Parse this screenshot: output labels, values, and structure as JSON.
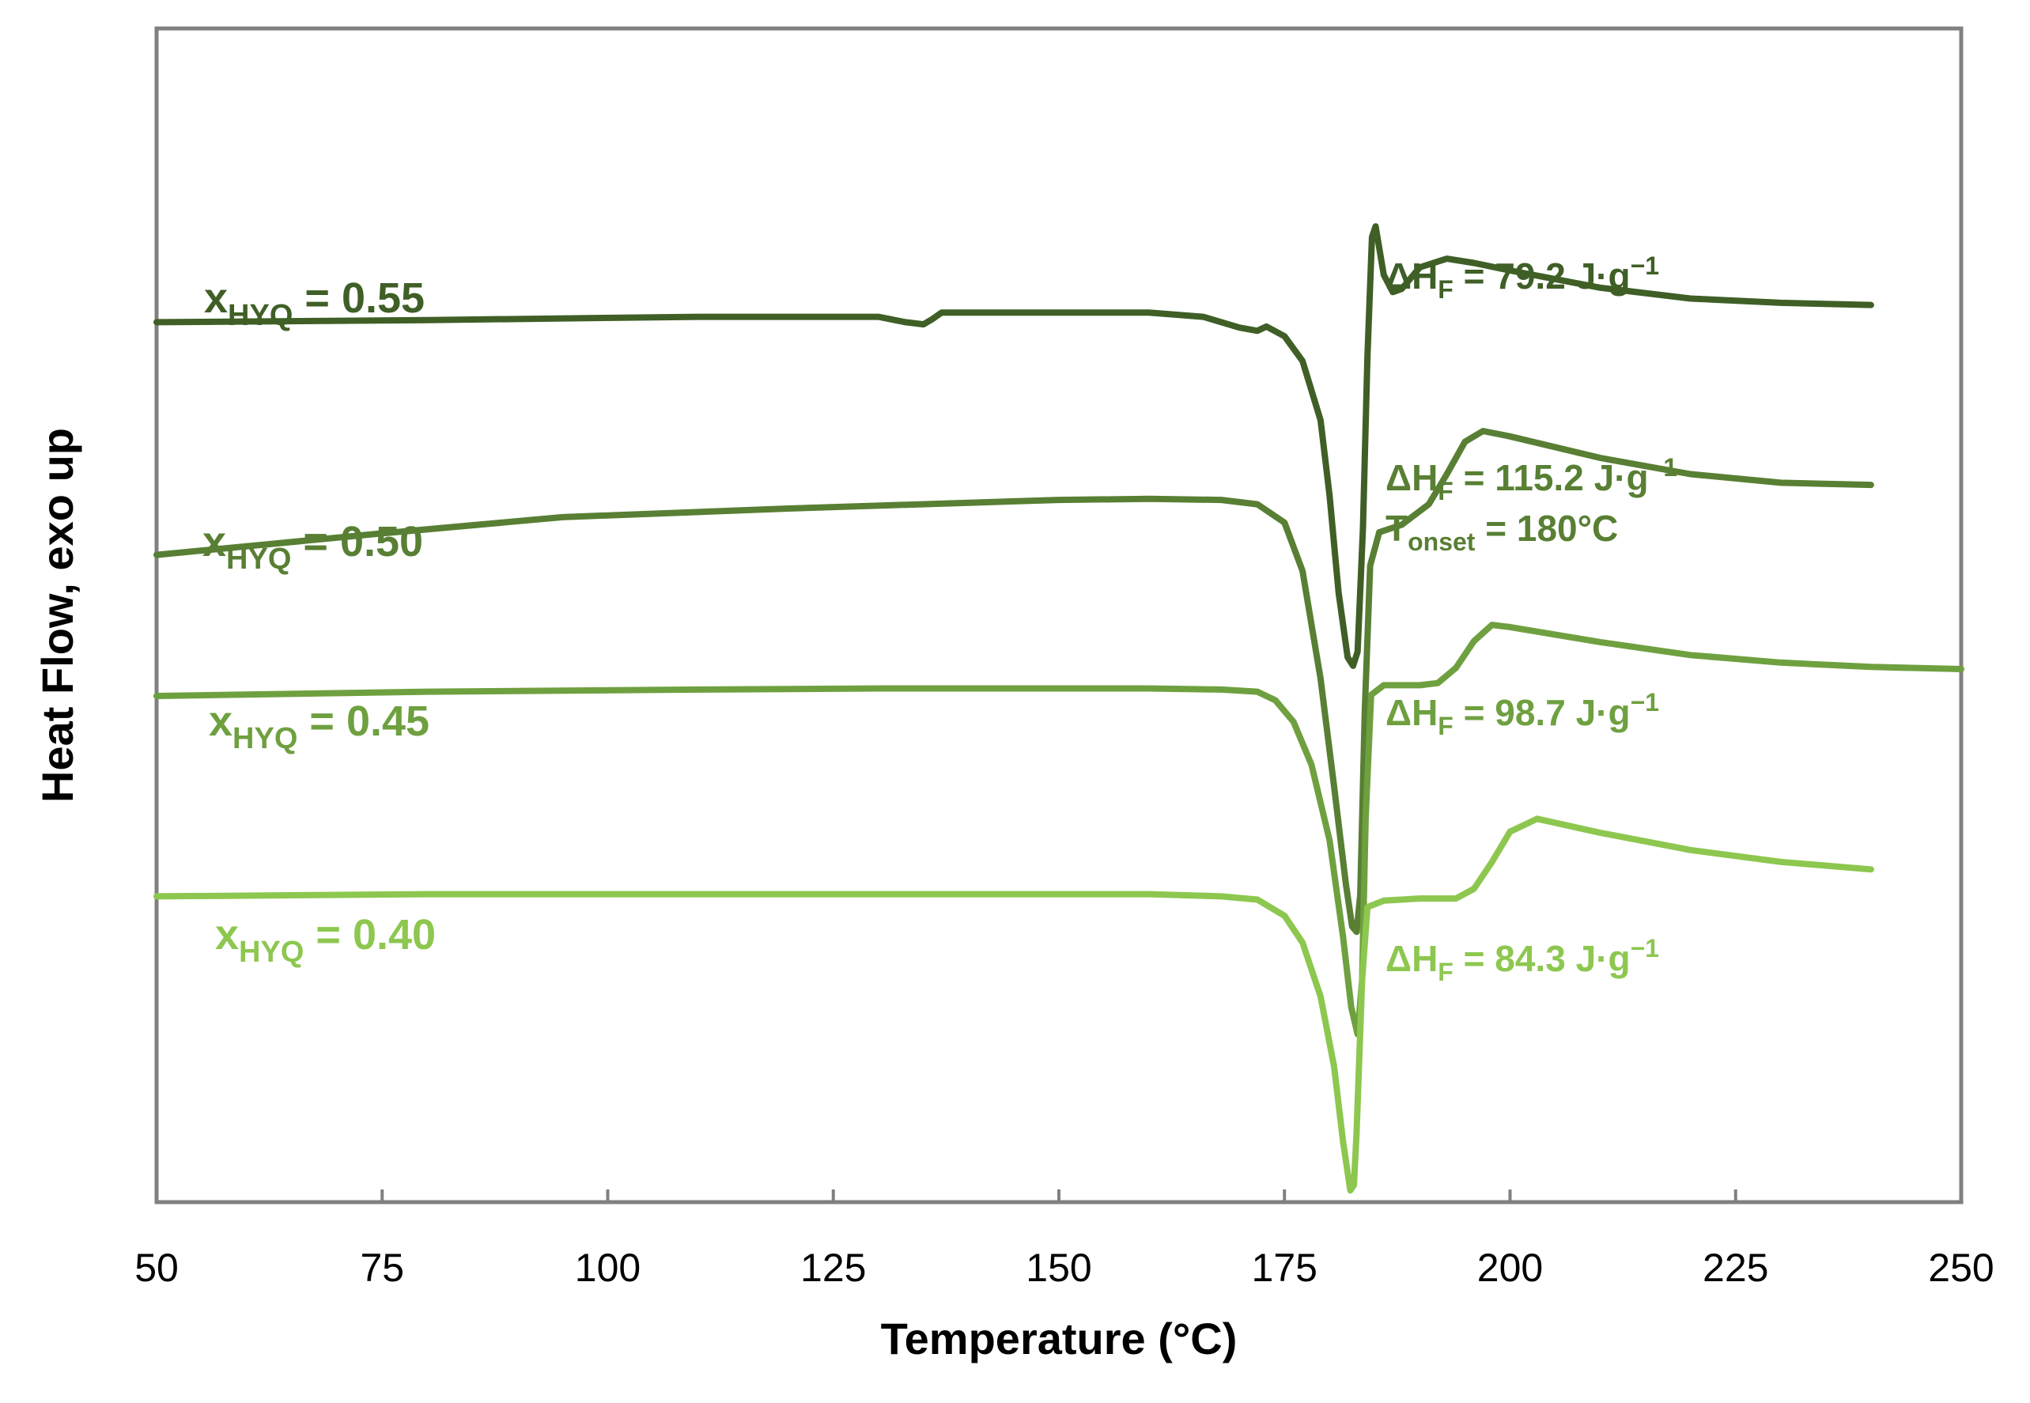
{
  "chart_data": {
    "type": "line",
    "title": "",
    "xlabel": "Temperature (°C)",
    "ylabel": "Heat Flow, exo up",
    "xlim": [
      50,
      250
    ],
    "ylim": [
      0,
      100
    ],
    "x_ticks": [
      "50",
      "75",
      "100",
      "125",
      "150",
      "175",
      "200",
      "225",
      "250"
    ],
    "y_ticks_shown": false,
    "grid": false,
    "series": [
      {
        "name": "x_HYQ = 0.55",
        "label_main": "x",
        "label_sub": "HYQ",
        "label_value": " = 0.55",
        "color": "#3f5f26",
        "points": [
          [
            50,
            81.1
          ],
          [
            80,
            81.3
          ],
          [
            110,
            81.6
          ],
          [
            130,
            81.6
          ],
          [
            133,
            81.1
          ],
          [
            135,
            80.9
          ],
          [
            136,
            81.4
          ],
          [
            137,
            82.0
          ],
          [
            160,
            82.0
          ],
          [
            166,
            81.6
          ],
          [
            170,
            80.6
          ],
          [
            172,
            80.3
          ],
          [
            173,
            80.7
          ],
          [
            175,
            79.8
          ],
          [
            177,
            77.5
          ],
          [
            179,
            72.0
          ],
          [
            180,
            65.0
          ],
          [
            181,
            56.0
          ],
          [
            182,
            50.0
          ],
          [
            182.6,
            49.2
          ],
          [
            183.1,
            50.5
          ],
          [
            183.7,
            62.0
          ],
          [
            184.2,
            78.0
          ],
          [
            184.7,
            89.0
          ],
          [
            185.1,
            90.0
          ],
          [
            186,
            85.5
          ],
          [
            187,
            83.9
          ],
          [
            188,
            84.2
          ],
          [
            190,
            86.2
          ],
          [
            193,
            87.0
          ],
          [
            196,
            86.6
          ],
          [
            200,
            85.9
          ],
          [
            210,
            84.3
          ],
          [
            220,
            83.3
          ],
          [
            230,
            82.9
          ],
          [
            240,
            82.7
          ]
        ]
      },
      {
        "name": "x_HYQ = 0.50",
        "label_main": "x",
        "label_sub": "HYQ",
        "label_value": " = 0.50",
        "color": "#587f33",
        "points": [
          [
            50,
            59.5
          ],
          [
            75,
            61.5
          ],
          [
            95,
            63.0
          ],
          [
            120,
            63.8
          ],
          [
            150,
            64.6
          ],
          [
            160,
            64.7
          ],
          [
            168,
            64.6
          ],
          [
            172,
            64.2
          ],
          [
            175,
            62.5
          ],
          [
            177,
            58.0
          ],
          [
            179,
            48.0
          ],
          [
            180.5,
            38.0
          ],
          [
            181.8,
            29.0
          ],
          [
            182.5,
            25.0
          ],
          [
            183.0,
            24.5
          ],
          [
            183.4,
            28.0
          ],
          [
            183.9,
            45.0
          ],
          [
            184.5,
            58.5
          ],
          [
            185.5,
            61.6
          ],
          [
            188,
            62.3
          ],
          [
            191,
            64.2
          ],
          [
            193,
            67.0
          ],
          [
            195,
            70.0
          ],
          [
            197,
            71.0
          ],
          [
            200,
            70.5
          ],
          [
            210,
            68.5
          ],
          [
            220,
            67.0
          ],
          [
            230,
            66.2
          ],
          [
            240,
            66.0
          ]
        ]
      },
      {
        "name": "x_HYQ = 0.45",
        "label_main": "x",
        "label_sub": "HYQ",
        "label_value": " = 0.45",
        "color": "#6fa040",
        "points": [
          [
            50,
            46.4
          ],
          [
            80,
            46.8
          ],
          [
            110,
            47.0
          ],
          [
            130,
            47.1
          ],
          [
            160,
            47.1
          ],
          [
            168,
            47.0
          ],
          [
            172,
            46.8
          ],
          [
            174,
            46.0
          ],
          [
            176,
            44.0
          ],
          [
            178,
            40.0
          ],
          [
            180,
            33.0
          ],
          [
            181.5,
            24.0
          ],
          [
            182.4,
            17.5
          ],
          [
            183.1,
            15.0
          ],
          [
            183.6,
            20.0
          ],
          [
            184.0,
            35.0
          ],
          [
            184.6,
            46.5
          ],
          [
            186,
            47.4
          ],
          [
            190,
            47.4
          ],
          [
            192,
            47.6
          ],
          [
            194,
            49.0
          ],
          [
            196,
            51.5
          ],
          [
            198,
            53.0
          ],
          [
            200,
            52.8
          ],
          [
            210,
            51.4
          ],
          [
            220,
            50.2
          ],
          [
            230,
            49.5
          ],
          [
            240,
            49.1
          ],
          [
            250,
            48.9
          ]
        ]
      },
      {
        "name": "x_HYQ = 0.40",
        "label_main": "x",
        "label_sub": "HYQ",
        "label_value": " = 0.40",
        "color": "#8dc74f",
        "points": [
          [
            50,
            27.8
          ],
          [
            80,
            28.0
          ],
          [
            110,
            28.0
          ],
          [
            140,
            28.0
          ],
          [
            160,
            28.0
          ],
          [
            168,
            27.8
          ],
          [
            172,
            27.5
          ],
          [
            175,
            26.0
          ],
          [
            177,
            23.5
          ],
          [
            179,
            18.5
          ],
          [
            180.5,
            12.0
          ],
          [
            181.5,
            5.0
          ],
          [
            182.3,
            0.5
          ],
          [
            182.7,
            1.0
          ],
          [
            183.0,
            6.0
          ],
          [
            183.6,
            20.0
          ],
          [
            184.2,
            26.8
          ],
          [
            186,
            27.4
          ],
          [
            190,
            27.6
          ],
          [
            194,
            27.6
          ],
          [
            196,
            28.5
          ],
          [
            198,
            31.0
          ],
          [
            200,
            33.8
          ],
          [
            203,
            35.0
          ],
          [
            210,
            33.7
          ],
          [
            220,
            32.1
          ],
          [
            230,
            31.0
          ],
          [
            240,
            30.3
          ]
        ]
      }
    ],
    "annotations": [
      {
        "series": "x_HYQ = 0.55",
        "dH_pre": "ΔH",
        "dH_sub": "F",
        "dH_value": " = 79.2 J·g",
        "dH_sup": "−1"
      },
      {
        "series": "x_HYQ = 0.50",
        "dH_pre": "ΔH",
        "dH_sub": "F",
        "dH_value": " = 115.2 J·g",
        "dH_sup": "−1",
        "t_pre": "T",
        "t_sub": "onset",
        "t_value": " = 180°C"
      },
      {
        "series": "x_HYQ = 0.45",
        "dH_pre": "ΔH",
        "dH_sub": "F",
        "dH_value": " = 98.7 J·g",
        "dH_sup": "−1"
      },
      {
        "series": "x_HYQ = 0.40",
        "dH_pre": "ΔH",
        "dH_sub": "F",
        "dH_value": " = 84.3 J·g",
        "dH_sup": "−1"
      }
    ],
    "axis_color": "#808080"
  }
}
